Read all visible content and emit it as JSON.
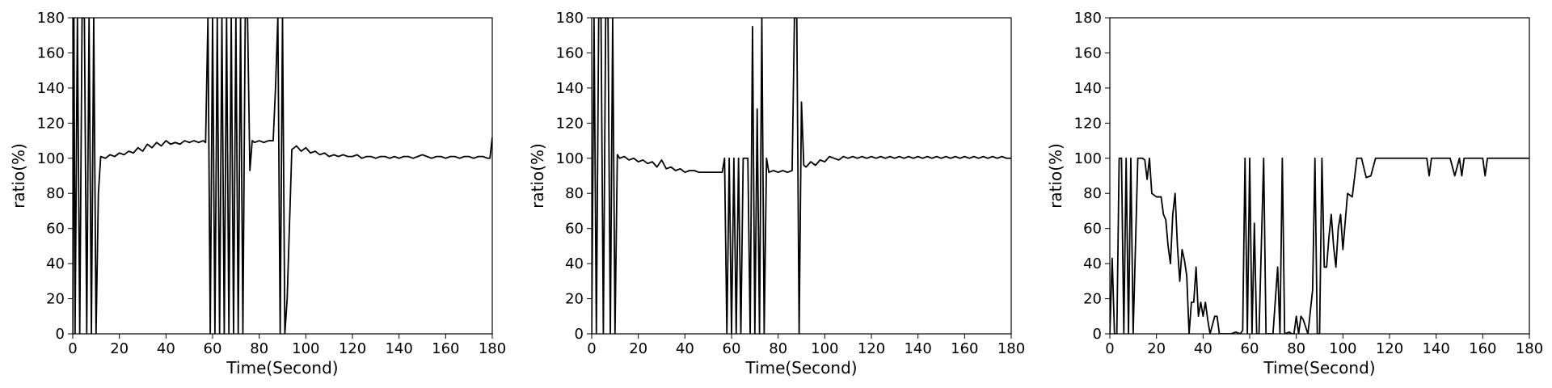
{
  "figure": {
    "panels": [
      {
        "id": "left"
      },
      {
        "id": "middle"
      },
      {
        "id": "right"
      }
    ]
  },
  "chart_data": [
    {
      "type": "line",
      "xlabel": "Time(Second)",
      "ylabel": "ratio(%)",
      "xlim": [
        0,
        180
      ],
      "ylim": [
        0,
        180
      ],
      "xticks": [
        0,
        20,
        40,
        60,
        80,
        100,
        120,
        140,
        160,
        180
      ],
      "yticks": [
        0,
        20,
        40,
        60,
        80,
        100,
        120,
        140,
        160,
        180
      ],
      "grid": false,
      "series": [
        {
          "color": "#000000",
          "x": [
            0,
            0.5,
            1,
            2,
            3,
            4,
            5,
            6,
            7,
            8,
            9,
            10,
            11,
            12,
            14,
            16,
            18,
            20,
            22,
            24,
            26,
            28,
            30,
            32,
            34,
            36,
            38,
            40,
            42,
            44,
            46,
            48,
            50,
            52,
            54,
            56,
            57,
            58,
            59,
            60,
            61,
            62,
            63,
            64,
            65,
            66,
            67,
            68,
            69,
            70,
            71,
            72,
            73,
            74,
            75,
            76,
            77,
            78,
            80,
            82,
            84,
            86,
            87,
            88,
            89,
            90,
            91,
            92,
            94,
            96,
            98,
            100,
            102,
            104,
            106,
            108,
            110,
            112,
            114,
            116,
            118,
            120,
            122,
            124,
            126,
            128,
            130,
            132,
            134,
            136,
            138,
            140,
            142,
            144,
            146,
            148,
            150,
            152,
            154,
            156,
            158,
            160,
            162,
            164,
            166,
            168,
            170,
            172,
            174,
            176,
            178,
            179,
            180
          ],
          "y": [
            0,
            180,
            0,
            180,
            0,
            180,
            180,
            0,
            180,
            0,
            180,
            0,
            80,
            101,
            100,
            102,
            101,
            103,
            102,
            104,
            103,
            106,
            104,
            108,
            106,
            109,
            107,
            110,
            108,
            109,
            108,
            110,
            109,
            110,
            109,
            110,
            109,
            180,
            0,
            180,
            0,
            180,
            0,
            180,
            0,
            180,
            0,
            180,
            0,
            180,
            0,
            180,
            0,
            180,
            180,
            93,
            110,
            109,
            110,
            109,
            110,
            110,
            140,
            180,
            0,
            180,
            0,
            20,
            105,
            107,
            104,
            106,
            103,
            104,
            102,
            103,
            101,
            102,
            101,
            102,
            101,
            101,
            102,
            100,
            101,
            101,
            100,
            101,
            101,
            100,
            101,
            100,
            101,
            101,
            100,
            101,
            102,
            101,
            100,
            101,
            101,
            100,
            101,
            101,
            100,
            101,
            101,
            100,
            101,
            101,
            100,
            100,
            112
          ]
        }
      ]
    },
    {
      "type": "line",
      "xlabel": "Time(Second)",
      "ylabel": "ratio(%)",
      "xlim": [
        0,
        180
      ],
      "ylim": [
        0,
        180
      ],
      "xticks": [
        0,
        20,
        40,
        60,
        80,
        100,
        120,
        140,
        160,
        180
      ],
      "yticks": [
        0,
        20,
        40,
        60,
        80,
        100,
        120,
        140,
        160,
        180
      ],
      "grid": false,
      "series": [
        {
          "color": "#000000",
          "x": [
            0,
            1,
            2,
            3,
            4,
            5,
            6,
            7,
            8,
            9,
            10,
            11,
            12,
            14,
            16,
            18,
            20,
            22,
            24,
            26,
            28,
            30,
            32,
            34,
            36,
            38,
            40,
            42,
            44,
            46,
            48,
            50,
            52,
            54,
            56,
            57,
            58,
            59,
            60,
            61,
            62,
            63,
            64,
            65,
            66,
            67,
            68,
            69,
            70,
            71,
            72,
            73,
            74,
            75,
            76,
            78,
            80,
            82,
            84,
            86,
            87,
            88,
            89,
            90,
            91,
            92,
            94,
            96,
            98,
            100,
            102,
            104,
            106,
            108,
            110,
            112,
            114,
            116,
            118,
            120,
            122,
            124,
            126,
            128,
            130,
            132,
            134,
            136,
            138,
            140,
            142,
            144,
            146,
            148,
            150,
            152,
            154,
            156,
            158,
            160,
            162,
            164,
            166,
            168,
            170,
            172,
            174,
            176,
            178,
            180
          ],
          "y": [
            0,
            180,
            0,
            180,
            180,
            0,
            180,
            180,
            0,
            180,
            0,
            102,
            100,
            101,
            99,
            100,
            98,
            99,
            97,
            98,
            95,
            99,
            94,
            95,
            93,
            94,
            92,
            93,
            93,
            92,
            92,
            92,
            92,
            92,
            92,
            100,
            0,
            100,
            0,
            100,
            0,
            100,
            0,
            100,
            100,
            100,
            0,
            175,
            0,
            128,
            0,
            180,
            0,
            100,
            92,
            93,
            92,
            93,
            92,
            93,
            180,
            180,
            0,
            132,
            96,
            95,
            98,
            96,
            99,
            98,
            101,
            100,
            99,
            101,
            100,
            101,
            100,
            101,
            100,
            101,
            100,
            101,
            100,
            101,
            100,
            101,
            100,
            101,
            100,
            101,
            100,
            101,
            100,
            101,
            100,
            101,
            100,
            101,
            100,
            101,
            100,
            101,
            100,
            101,
            100,
            101,
            100,
            101,
            100,
            100
          ]
        }
      ]
    },
    {
      "type": "line",
      "xlabel": "Time(Second)",
      "ylabel": "ratio(%)",
      "xlim": [
        0,
        180
      ],
      "ylim": [
        0,
        180
      ],
      "xticks": [
        0,
        20,
        40,
        60,
        80,
        100,
        120,
        140,
        160,
        180
      ],
      "yticks": [
        0,
        20,
        40,
        60,
        80,
        100,
        120,
        140,
        160,
        180
      ],
      "grid": false,
      "series": [
        {
          "color": "#000000",
          "x": [
            0,
            1,
            2,
            3,
            4,
            5,
            6,
            7,
            8,
            9,
            10,
            12,
            14,
            15,
            16,
            17,
            18,
            20,
            22,
            23,
            24,
            25,
            26,
            27,
            28,
            29,
            30,
            31,
            32,
            33,
            34,
            35,
            36,
            37,
            38,
            39,
            40,
            41,
            42,
            43,
            44,
            45,
            46,
            47,
            48,
            50,
            52,
            54,
            56,
            57,
            58,
            59,
            60,
            61,
            62,
            63,
            64,
            66,
            67,
            68,
            70,
            72,
            73,
            74,
            75,
            77,
            78,
            79,
            80,
            81,
            82,
            83,
            85,
            87,
            88,
            89,
            90,
            91,
            92,
            93,
            94,
            95,
            96,
            97,
            98,
            99,
            100,
            102,
            104,
            106,
            108,
            110,
            112,
            114,
            116,
            118,
            120,
            122,
            124,
            126,
            128,
            130,
            132,
            134,
            136,
            137,
            138,
            140,
            142,
            144,
            146,
            148,
            150,
            151,
            152,
            153,
            154,
            156,
            158,
            160,
            161,
            162,
            164,
            166,
            168,
            170,
            172,
            174,
            176,
            178,
            180
          ],
          "y": [
            0,
            43,
            0,
            0,
            100,
            100,
            0,
            100,
            0,
            100,
            0,
            100,
            100,
            99,
            88,
            100,
            80,
            78,
            78,
            68,
            65,
            50,
            40,
            68,
            80,
            50,
            30,
            48,
            42,
            33,
            0,
            18,
            18,
            38,
            10,
            18,
            10,
            18,
            8,
            0,
            5,
            10,
            10,
            0,
            0,
            0,
            0,
            1,
            0,
            2,
            100,
            0,
            100,
            0,
            63,
            0,
            0,
            100,
            0,
            0,
            0,
            38,
            0,
            100,
            0,
            1,
            0,
            0,
            10,
            0,
            10,
            8,
            0,
            25,
            100,
            0,
            0,
            100,
            38,
            38,
            55,
            68,
            50,
            38,
            60,
            68,
            48,
            80,
            78,
            100,
            100,
            89,
            90,
            100,
            100,
            100,
            100,
            100,
            100,
            100,
            100,
            100,
            100,
            100,
            100,
            90,
            100,
            100,
            100,
            100,
            100,
            90,
            100,
            90,
            100,
            100,
            100,
            100,
            100,
            100,
            90,
            100,
            100,
            100,
            100,
            100,
            100,
            100,
            100,
            100,
            100
          ]
        }
      ]
    }
  ]
}
